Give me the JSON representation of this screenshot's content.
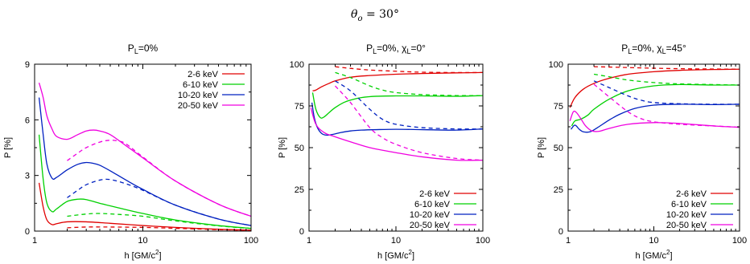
{
  "figure": {
    "main_title": "θ",
    "main_title_sub": "o",
    "main_title_rest": " = 30°"
  },
  "colors": {
    "2-6": "#e00000",
    "6-10": "#00d000",
    "10-20": "#0020c0",
    "20-50": "#f000e0"
  },
  "chart_data": [
    {
      "type": "line",
      "title_main": "P",
      "title_sub": "L",
      "title_rest": "=0%",
      "title_extra": "",
      "xlabel_main": "h [GM/c",
      "xlabel_sup": "2",
      "xlabel_rest": "]",
      "ylabel": "P [%]",
      "xscale": "log",
      "xlim": [
        1,
        100
      ],
      "ylim": [
        0,
        9
      ],
      "xticks": [
        {
          "v": 1,
          "label": "1"
        },
        {
          "v": 10,
          "label": "10"
        },
        {
          "v": 100,
          "label": "100"
        }
      ],
      "yticks": [
        {
          "v": 0,
          "label": "0"
        },
        {
          "v": 3,
          "label": "3"
        },
        {
          "v": 6,
          "label": "6"
        },
        {
          "v": 9,
          "label": "9"
        }
      ],
      "legend_position": "top-right",
      "series": [
        {
          "name": "2-6 keV",
          "color_key": "2-6",
          "style": "solid",
          "x": [
            1.1,
            1.2,
            1.3,
            1.45,
            1.6,
            2,
            3,
            5,
            10,
            20,
            50,
            100
          ],
          "y": [
            2.6,
            1.3,
            0.6,
            0.35,
            0.4,
            0.5,
            0.5,
            0.42,
            0.3,
            0.2,
            0.1,
            0.05
          ]
        },
        {
          "name": "6-10 keV",
          "color_key": "6-10",
          "style": "solid",
          "x": [
            1.1,
            1.2,
            1.3,
            1.45,
            1.6,
            2,
            2.5,
            3,
            4,
            6,
            10,
            20,
            50,
            100
          ],
          "y": [
            5.2,
            2.8,
            1.5,
            1.05,
            1.2,
            1.6,
            1.72,
            1.7,
            1.5,
            1.25,
            0.95,
            0.6,
            0.3,
            0.15
          ]
        },
        {
          "name": "10-20 keV",
          "color_key": "10-20",
          "style": "solid",
          "x": [
            1.1,
            1.2,
            1.3,
            1.45,
            1.6,
            2,
            2.5,
            3,
            3.5,
            4,
            5,
            7,
            10,
            20,
            50,
            100
          ],
          "y": [
            7.2,
            5.2,
            3.6,
            2.85,
            2.9,
            3.3,
            3.6,
            3.7,
            3.65,
            3.55,
            3.25,
            2.75,
            2.25,
            1.4,
            0.65,
            0.3
          ]
        },
        {
          "name": "20-50 keV",
          "color_key": "20-50",
          "style": "solid",
          "x": [
            1.1,
            1.2,
            1.3,
            1.45,
            1.6,
            2,
            2.5,
            3,
            3.5,
            4,
            5,
            7,
            10,
            20,
            50,
            100
          ],
          "y": [
            8.0,
            7.2,
            6.2,
            5.5,
            5.1,
            4.95,
            5.2,
            5.4,
            5.45,
            5.4,
            5.2,
            4.6,
            3.95,
            2.7,
            1.45,
            0.8
          ]
        },
        {
          "name": "",
          "color_key": "2-6",
          "style": "dashed",
          "x": [
            2,
            3,
            5,
            10,
            20,
            50,
            100
          ],
          "y": [
            0.18,
            0.22,
            0.22,
            0.2,
            0.15,
            0.08,
            0.04
          ]
        },
        {
          "name": "",
          "color_key": "6-10",
          "style": "dashed",
          "x": [
            2,
            3,
            4,
            6,
            10,
            20,
            50,
            100
          ],
          "y": [
            0.8,
            0.92,
            0.95,
            0.9,
            0.8,
            0.55,
            0.28,
            0.14
          ]
        },
        {
          "name": "",
          "color_key": "10-20",
          "style": "dashed",
          "x": [
            2,
            2.5,
            3,
            4,
            5,
            7,
            10,
            20,
            50,
            100
          ],
          "y": [
            1.8,
            2.2,
            2.5,
            2.75,
            2.78,
            2.55,
            2.2,
            1.4,
            0.65,
            0.3
          ]
        },
        {
          "name": "",
          "color_key": "20-50",
          "style": "dashed",
          "x": [
            2,
            2.5,
            3,
            4,
            5,
            6,
            7,
            10,
            20,
            50,
            100
          ],
          "y": [
            3.8,
            4.2,
            4.5,
            4.8,
            4.9,
            4.85,
            4.7,
            4.0,
            2.7,
            1.45,
            0.8
          ]
        }
      ]
    },
    {
      "type": "line",
      "title_main": "P",
      "title_sub": "L",
      "title_rest": "=0%, ",
      "title_extra": "χ",
      "title_extra_sub": "L",
      "title_extra_rest": "=0°",
      "xlabel_main": "h [GM/c",
      "xlabel_sup": "2",
      "xlabel_rest": "]",
      "ylabel": "P [%]",
      "xscale": "log",
      "xlim": [
        1,
        100
      ],
      "ylim": [
        0,
        100
      ],
      "xticks": [
        {
          "v": 1,
          "label": "1"
        },
        {
          "v": 10,
          "label": "10"
        },
        {
          "v": 100,
          "label": "100"
        }
      ],
      "yticks": [
        {
          "v": 0,
          "label": "0"
        },
        {
          "v": 25,
          "label": "25"
        },
        {
          "v": 50,
          "label": "50"
        },
        {
          "v": 75,
          "label": "75"
        },
        {
          "v": 100,
          "label": "100"
        }
      ],
      "legend_position": "bottom-right",
      "series": [
        {
          "name": "2-6 keV",
          "color_key": "2-6",
          "style": "solid",
          "x": [
            1.1,
            1.2,
            1.4,
            1.7,
            2,
            3,
            5,
            10,
            20,
            50,
            100
          ],
          "y": [
            84,
            84.5,
            86.5,
            88.5,
            90,
            92.2,
            93.2,
            94,
            94.4,
            94.8,
            95
          ]
        },
        {
          "name": "6-10 keV",
          "color_key": "6-10",
          "style": "solid",
          "x": [
            1.1,
            1.2,
            1.35,
            1.5,
            1.7,
            2,
            2.5,
            3,
            4,
            6,
            10,
            20,
            50,
            100
          ],
          "y": [
            83,
            73,
            68,
            68.5,
            71,
            74,
            77,
            78.5,
            80,
            80.8,
            81,
            81,
            80.8,
            81.2
          ]
        },
        {
          "name": "10-20 keV",
          "color_key": "10-20",
          "style": "solid",
          "x": [
            1.08,
            1.15,
            1.25,
            1.4,
            1.6,
            1.9,
            2.3,
            3,
            4,
            6,
            10,
            20,
            50,
            100
          ],
          "y": [
            77,
            68,
            62,
            58.5,
            57.5,
            58,
            59,
            60,
            60.5,
            60.8,
            61,
            60.8,
            60.5,
            61.2
          ]
        },
        {
          "name": "20-50 keV",
          "color_key": "20-50",
          "style": "solid",
          "x": [
            1.05,
            1.2,
            1.5,
            2,
            3,
            5,
            10,
            20,
            50,
            100
          ],
          "y": [
            74,
            64,
            59,
            56.5,
            53.5,
            50,
            47,
            44.5,
            42.5,
            42.5
          ]
        },
        {
          "name": "",
          "color_key": "2-6",
          "style": "dashed",
          "x": [
            2,
            3,
            5,
            10,
            20,
            50,
            100
          ],
          "y": [
            98.5,
            97.5,
            96.5,
            95.8,
            95.2,
            95,
            95
          ]
        },
        {
          "name": "",
          "color_key": "6-10",
          "style": "dashed",
          "x": [
            2,
            3,
            5,
            7,
            10,
            20,
            50,
            100
          ],
          "y": [
            95,
            92,
            87,
            84.5,
            83,
            81.8,
            81.2,
            81.2
          ]
        },
        {
          "name": "",
          "color_key": "10-20",
          "style": "dashed",
          "x": [
            2,
            3,
            5,
            7,
            10,
            20,
            50,
            100
          ],
          "y": [
            90,
            84,
            73,
            67,
            64,
            62,
            61.2,
            61.2
          ]
        },
        {
          "name": "",
          "color_key": "20-50",
          "style": "dashed",
          "x": [
            2,
            3,
            5,
            7,
            10,
            20,
            50,
            100
          ],
          "y": [
            87,
            77,
            62,
            56,
            52,
            47,
            43.5,
            42.5
          ]
        }
      ]
    },
    {
      "type": "line",
      "title_main": "P",
      "title_sub": "L",
      "title_rest": "=0%, ",
      "title_extra": "χ",
      "title_extra_sub": "L",
      "title_extra_rest": "=45°",
      "xlabel_main": "h [GM/c",
      "xlabel_sup": "2",
      "xlabel_rest": "]",
      "ylabel": "P [%]",
      "xscale": "log",
      "xlim": [
        1,
        100
      ],
      "ylim": [
        0,
        100
      ],
      "xticks": [
        {
          "v": 1,
          "label": "1"
        },
        {
          "v": 10,
          "label": "10"
        },
        {
          "v": 100,
          "label": "100"
        }
      ],
      "yticks": [
        {
          "v": 0,
          "label": "0"
        },
        {
          "v": 25,
          "label": "25"
        },
        {
          "v": 50,
          "label": "50"
        },
        {
          "v": 75,
          "label": "75"
        },
        {
          "v": 100,
          "label": "100"
        }
      ],
      "legend_position": "bottom-right",
      "series": [
        {
          "name": "2-6 keV",
          "color_key": "2-6",
          "style": "solid",
          "x": [
            1.05,
            1.2,
            1.5,
            2,
            3,
            5,
            10,
            20,
            50,
            100
          ],
          "y": [
            74,
            80,
            85,
            88.5,
            91.5,
            94,
            95.5,
            96.3,
            96.8,
            97
          ]
        },
        {
          "name": "6-10 keV",
          "color_key": "6-10",
          "style": "solid",
          "x": [
            1.1,
            1.2,
            1.4,
            1.7,
            2,
            3,
            5,
            10,
            20,
            50,
            100
          ],
          "y": [
            63,
            66,
            67,
            69.5,
            73,
            79,
            84,
            87,
            87.8,
            87.5,
            87.5
          ]
        },
        {
          "name": "10-20 keV",
          "color_key": "10-20",
          "style": "solid",
          "x": [
            1.08,
            1.2,
            1.35,
            1.5,
            1.8,
            2.2,
            3,
            4,
            6,
            10,
            20,
            50,
            100
          ],
          "y": [
            61,
            63.5,
            61,
            59.5,
            59.5,
            62,
            66.5,
            70,
            73.5,
            75.5,
            76,
            75.8,
            76
          ]
        },
        {
          "name": "20-50 keV",
          "color_key": "20-50",
          "style": "solid",
          "x": [
            1.05,
            1.15,
            1.25,
            1.4,
            1.6,
            1.9,
            2.3,
            3,
            5,
            10,
            20,
            50,
            100
          ],
          "y": [
            66,
            71.5,
            71,
            67.5,
            63,
            60,
            59.8,
            61.5,
            64,
            65,
            64.5,
            63,
            62.2
          ]
        },
        {
          "name": "",
          "color_key": "2-6",
          "style": "dashed",
          "x": [
            2,
            3,
            5,
            10,
            20,
            50,
            100
          ],
          "y": [
            98.5,
            98.3,
            98,
            97.6,
            97.3,
            97.1,
            97
          ]
        },
        {
          "name": "",
          "color_key": "6-10",
          "style": "dashed",
          "x": [
            2,
            3,
            5,
            10,
            20,
            50,
            100
          ],
          "y": [
            94,
            92.5,
            90.5,
            89,
            88.2,
            87.8,
            87.5
          ]
        },
        {
          "name": "",
          "color_key": "10-20",
          "style": "dashed",
          "x": [
            2,
            3,
            5,
            7,
            10,
            20,
            50,
            100
          ],
          "y": [
            90,
            86,
            81,
            78.5,
            77,
            76.3,
            76,
            76
          ]
        },
        {
          "name": "",
          "color_key": "20-50",
          "style": "dashed",
          "x": [
            2,
            3,
            5,
            7,
            10,
            20,
            50,
            100
          ],
          "y": [
            88,
            80.5,
            71.5,
            67.5,
            65.5,
            64,
            63,
            62.2
          ]
        }
      ]
    }
  ]
}
